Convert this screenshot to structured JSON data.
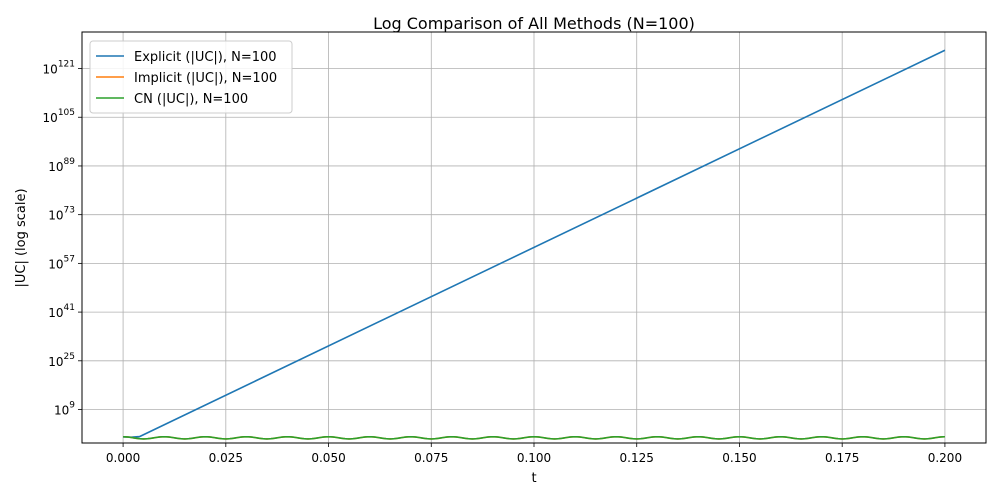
{
  "chart_data": {
    "type": "line",
    "title": "Log Comparison of All Methods (N=100)",
    "xlabel": "t",
    "ylabel": "|UC| (log scale)",
    "xlim": [
      -0.01,
      0.21
    ],
    "ylim_log10": [
      -2,
      133
    ],
    "yscale": "log",
    "grid": true,
    "legend_position": "top-left",
    "x_ticks": [
      0.0,
      0.025,
      0.05,
      0.075,
      0.1,
      0.125,
      0.15,
      0.175,
      0.2
    ],
    "x_tick_labels": [
      "0.000",
      "0.025",
      "0.050",
      "0.075",
      "0.100",
      "0.125",
      "0.150",
      "0.175",
      "0.200"
    ],
    "y_ticks_exponent": [
      9,
      25,
      41,
      57,
      73,
      89,
      105,
      121
    ],
    "y_tick_base": "10",
    "series": [
      {
        "name": "Explicit (|UC|), N=100",
        "color": "#1f77b4",
        "x": [
          0.0,
          0.002,
          0.004,
          0.2
        ],
        "log10_y": [
          0.0,
          -0.1,
          0.1,
          127.0
        ]
      },
      {
        "name": "Implicit (|UC|), N=100",
        "color": "#ff7f0e",
        "period": 0.01,
        "log10_center": -0.3,
        "log10_amplitude": 0.35,
        "x_range": [
          0.0,
          0.2
        ]
      },
      {
        "name": "CN (|UC|), N=100",
        "color": "#2ca02c",
        "period": 0.01,
        "log10_center": -0.3,
        "log10_amplitude": 0.35,
        "x_range": [
          0.0,
          0.2
        ]
      }
    ]
  }
}
